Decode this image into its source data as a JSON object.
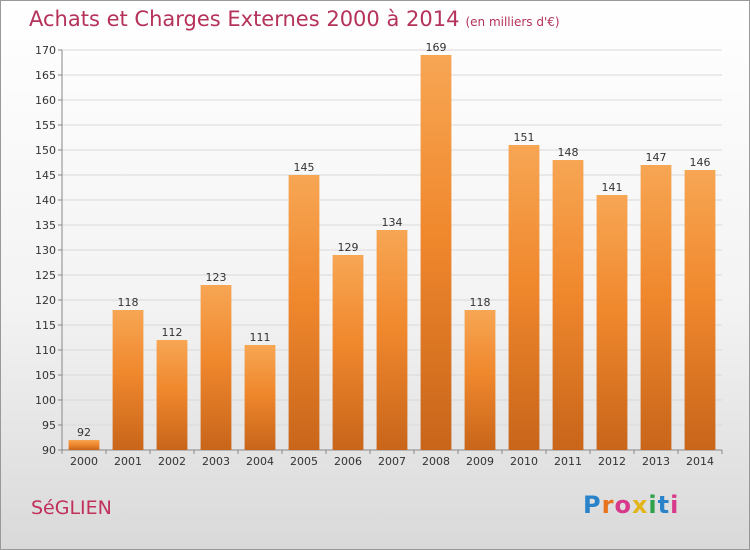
{
  "title": "Achats et Charges Externes 2000 à 2014",
  "subtitle": "(en milliers d'€)",
  "town": "SéGLIEN",
  "logo": {
    "letters": [
      "P",
      "r",
      "o",
      "x",
      "i",
      "t",
      "i"
    ],
    "colors": [
      "#2a83c9",
      "#e8721c",
      "#d8398a",
      "#e2b51a",
      "#2ea14a",
      "#2a83c9",
      "#d8398a"
    ]
  },
  "colors": {
    "bar": "#f0882d",
    "bar_light": "#f7a654",
    "bar_dark": "#c8651a",
    "grid": "#d9d9d9",
    "title": "#b5325a"
  },
  "chart_data": {
    "type": "bar",
    "categories": [
      "2000",
      "2001",
      "2002",
      "2003",
      "2004",
      "2005",
      "2006",
      "2007",
      "2008",
      "2009",
      "2010",
      "2011",
      "2012",
      "2013",
      "2014"
    ],
    "values": [
      92,
      118,
      112,
      123,
      111,
      145,
      129,
      134,
      169,
      118,
      151,
      148,
      141,
      147,
      146
    ],
    "yticks": [
      90,
      95,
      100,
      105,
      110,
      115,
      120,
      125,
      130,
      135,
      140,
      145,
      150,
      155,
      160,
      165,
      170
    ],
    "ylim": [
      90,
      170
    ],
    "grid": true,
    "data_labels": true
  }
}
